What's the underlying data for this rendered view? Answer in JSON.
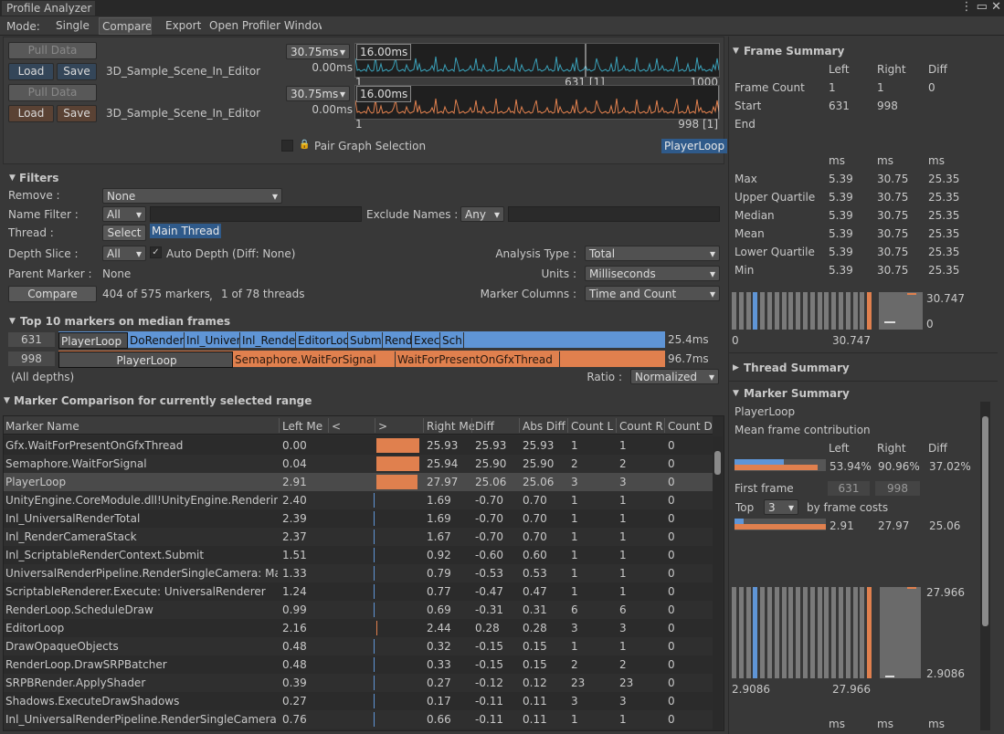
{
  "window": {
    "title": "Profile Analyzer"
  },
  "toolbar": {
    "mode_label": "Mode:",
    "tabs": [
      "Single",
      "Compare",
      "Export",
      "Open Profiler Window"
    ]
  },
  "data_sets": [
    {
      "pull": "Pull Data",
      "load": "Load",
      "save": "Save",
      "name": "3D_Sample_Scene_In_Editor",
      "range": "30.75ms",
      "min": "0.00ms",
      "graph_max": "16.00ms",
      "axis": [
        "1",
        "631 [1]",
        "1000"
      ]
    },
    {
      "pull": "Pull Data",
      "load": "Load",
      "save": "Save",
      "name": "3D_Sample_Scene_In_Editor",
      "range": "30.75ms",
      "min": "0.00ms",
      "graph_max": "16.00ms",
      "axis": [
        "1",
        "998 [1]"
      ]
    }
  ],
  "pair_graph": "Pair Graph Selection",
  "selection": "PlayerLoop",
  "filters": {
    "title": "Filters",
    "remove_label": "Remove :",
    "remove_value": "None",
    "name_filter_label": "Name Filter :",
    "name_filter_value": "All",
    "exclude_label": "Exclude Names :",
    "exclude_value": "Any",
    "thread_label": "Thread :",
    "select": "Select",
    "thread_value": "Main Thread",
    "depth_label": "Depth Slice :",
    "depth_value": "All",
    "auto_depth": "Auto Depth (Diff: None)",
    "analysis_label": "Analysis Type :",
    "analysis_value": "Total",
    "parent_label": "Parent Marker :",
    "parent_value": "None",
    "units_label": "Units :",
    "units_value": "Milliseconds",
    "compare": "Compare",
    "markers_count": "404 of 575 markers",
    "separator": ",",
    "threads_count": "1 of 78 threads",
    "columns_label": "Marker Columns :",
    "columns_value": "Time and Count"
  },
  "top10": {
    "title": "Top 10 markers on median frames",
    "rows": [
      {
        "frame": "631",
        "segments": [
          "PlayerLoop",
          "DoRenderL",
          "Inl_Univers",
          "Inl_Render",
          "EditorLoo",
          "Submi",
          "Rend",
          "Exec",
          "Sch"
        ],
        "total": "25.4ms"
      },
      {
        "frame": "998",
        "segments": [
          "PlayerLoop",
          "Semaphore.WaitForSignal",
          "WaitForPresentOnGfxThread"
        ],
        "total": "96.7ms"
      }
    ],
    "depths": "(All depths)",
    "ratio_label": "Ratio :",
    "ratio_value": "Normalized"
  },
  "table": {
    "title": "Marker Comparison for currently selected range",
    "headers": [
      "Marker Name",
      "Left Me",
      "<",
      ">",
      "Right Me",
      "Diff",
      "Abs Diff",
      "Count L",
      "Count R",
      "Count D"
    ],
    "rows": [
      [
        "Gfx.WaitForPresentOnGfxThread",
        "0.00",
        "25.93",
        "25.93",
        "25.93",
        "1",
        "1",
        "0"
      ],
      [
        "Semaphore.WaitForSignal",
        "0.04",
        "25.94",
        "25.90",
        "25.90",
        "2",
        "2",
        "0"
      ],
      [
        "PlayerLoop",
        "2.91",
        "27.97",
        "25.06",
        "25.06",
        "3",
        "3",
        "0"
      ],
      [
        "UnityEngine.CoreModule.dll!UnityEngine.Rendering::R",
        "2.40",
        "1.69",
        "-0.70",
        "0.70",
        "1",
        "1",
        "0"
      ],
      [
        "Inl_UniversalRenderTotal",
        "2.39",
        "1.69",
        "-0.70",
        "0.70",
        "1",
        "1",
        "0"
      ],
      [
        "Inl_RenderCameraStack",
        "2.37",
        "1.67",
        "-0.70",
        "0.70",
        "1",
        "1",
        "0"
      ],
      [
        "Inl_ScriptableRenderContext.Submit",
        "1.51",
        "0.92",
        "-0.60",
        "0.60",
        "1",
        "1",
        "0"
      ],
      [
        "UniversalRenderPipeline.RenderSingleCamera: Main",
        "1.33",
        "0.79",
        "-0.53",
        "0.53",
        "1",
        "1",
        "0"
      ],
      [
        "ScriptableRenderer.Execute: UniversalRenderer",
        "1.24",
        "0.77",
        "-0.47",
        "0.47",
        "1",
        "1",
        "0"
      ],
      [
        "RenderLoop.ScheduleDraw",
        "0.99",
        "0.69",
        "-0.31",
        "0.31",
        "6",
        "6",
        "0"
      ],
      [
        "EditorLoop",
        "2.16",
        "2.44",
        "0.28",
        "0.28",
        "3",
        "3",
        "0"
      ],
      [
        "DrawOpaqueObjects",
        "0.48",
        "0.32",
        "-0.15",
        "0.15",
        "1",
        "1",
        "0"
      ],
      [
        "RenderLoop.DrawSRPBatcher",
        "0.48",
        "0.33",
        "-0.15",
        "0.15",
        "2",
        "2",
        "0"
      ],
      [
        "SRPBRender.ApplyShader",
        "0.39",
        "0.27",
        "-0.12",
        "0.12",
        "23",
        "23",
        "0"
      ],
      [
        "Shadows.ExecuteDrawShadows",
        "0.27",
        "0.17",
        "-0.11",
        "0.11",
        "3",
        "3",
        "0"
      ],
      [
        "Inl_UniversalRenderPipeline.RenderSingleCamera: Ma",
        "0.76",
        "0.66",
        "-0.11",
        "0.11",
        "1",
        "1",
        "0"
      ]
    ]
  },
  "frame_summary": {
    "title": "Frame Summary",
    "headers": [
      "Left",
      "Right",
      "Diff"
    ],
    "rows": [
      [
        "Frame Count",
        "1",
        "1",
        "0"
      ],
      [
        "Start",
        "631",
        "998"
      ],
      [
        "End"
      ]
    ],
    "units": [
      "ms",
      "ms",
      "ms"
    ],
    "stats": [
      [
        "Max",
        "5.39",
        "30.75",
        "25.35"
      ],
      [
        "Upper Quartile",
        "5.39",
        "30.75",
        "25.35"
      ],
      [
        "Median",
        "5.39",
        "30.75",
        "25.35"
      ],
      [
        "Mean",
        "5.39",
        "30.75",
        "25.35"
      ],
      [
        "Lower Quartile",
        "5.39",
        "30.75",
        "25.35"
      ],
      [
        "Min",
        "5.39",
        "30.75",
        "25.35"
      ]
    ],
    "hist_labels": [
      "30.747",
      "0",
      "0",
      "30.747"
    ]
  },
  "thread_summary": {
    "title": "Thread Summary"
  },
  "marker_summary": {
    "title": "Marker Summary",
    "marker": "PlayerLoop",
    "contribution": "Mean frame contribution",
    "headers": [
      "Left",
      "Right",
      "Diff"
    ],
    "percents": [
      "53.94%",
      "90.96%",
      "37.02%"
    ],
    "first_frame": "First frame",
    "frames": [
      "631",
      "998"
    ],
    "top": "Top",
    "top_n": "3",
    "by": "by frame costs",
    "costs": [
      "2.91",
      "27.97",
      "25.06"
    ],
    "hist_labels": [
      "27.966",
      "2.9086",
      "2.9086",
      "27.966"
    ],
    "units": [
      "ms",
      "ms",
      "ms"
    ]
  }
}
